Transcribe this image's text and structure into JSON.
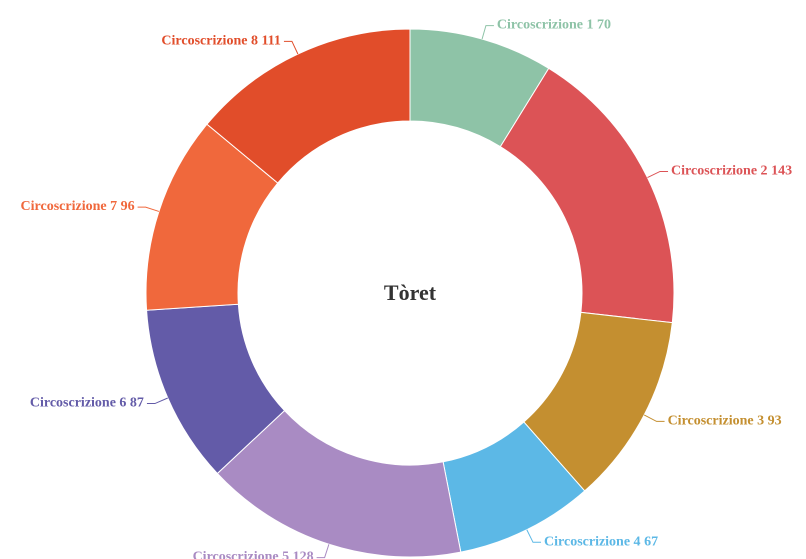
{
  "chart_data": {
    "type": "donut",
    "title": "Tòret",
    "categories": [
      "Circoscrizione 1",
      "Circoscrizione 2",
      "Circoscrizione 3",
      "Circoscrizione 4",
      "Circoscrizione 5",
      "Circoscrizione 6",
      "Circoscrizione 7",
      "Circoscrizione 8"
    ],
    "values": [
      70,
      143,
      93,
      67,
      128,
      87,
      96,
      111
    ],
    "colors": [
      "#8ec3a7",
      "#dc5356",
      "#c48f30",
      "#5cb8e6",
      "#a98bc3",
      "#635ba8",
      "#f0683c",
      "#e14d2a"
    ]
  }
}
